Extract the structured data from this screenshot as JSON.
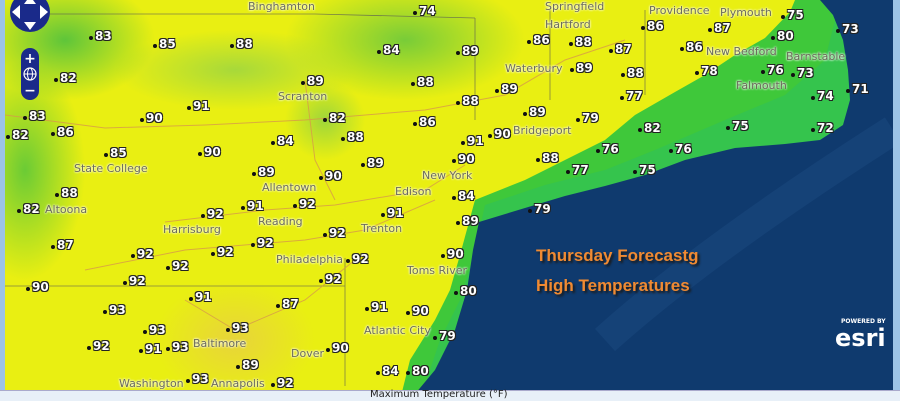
{
  "title": {
    "line1": "Thursday Forecastg",
    "line2": "High Temperatures"
  },
  "legend_label": "Maximum Temperature (°F)",
  "attribution": {
    "powered_by": "POWERED BY",
    "logo": "esri"
  },
  "colors": {
    "ocean": "#0f3a6e",
    "land_hot": "#e9ef12",
    "land_cool": "#3fc83a",
    "title": "#f08a32"
  },
  "nav_controls": {
    "pan_icons": [
      "arrow-up-icon",
      "arrow-left-icon",
      "arrow-right-icon",
      "arrow-down-icon"
    ],
    "zoom_in": "+",
    "zoom_out": "−",
    "globe_icon": "globe-icon"
  },
  "cities": [
    "Binghamton",
    "Springfield",
    "Scranton",
    "State College",
    "Altoona",
    "Allentown",
    "Edison",
    "New York",
    "Bridgeport",
    "Waterbury",
    "Hartford",
    "Providence",
    "New Bedford",
    "Falmouth",
    "Barnstable",
    "Plymouth",
    "Harrisburg",
    "Reading",
    "Trenton",
    "Philadelphia",
    "Toms River",
    "Atlantic City",
    "Baltimore",
    "Dover",
    "Annapolis",
    "Washington"
  ],
  "temperatures": [
    "74",
    "83",
    "85",
    "88",
    "82",
    "84",
    "88",
    "89",
    "83",
    "86",
    "82",
    "91",
    "90",
    "82",
    "86",
    "88",
    "84",
    "85",
    "90",
    "89",
    "89",
    "90",
    "88",
    "89",
    "86",
    "88",
    "86",
    "87",
    "87",
    "86",
    "89",
    "88",
    "89",
    "88",
    "77",
    "79",
    "89",
    "90",
    "91",
    "90",
    "82",
    "76",
    "76",
    "88",
    "77",
    "75",
    "75",
    "84",
    "78",
    "76",
    "80",
    "75",
    "73",
    "74",
    "73",
    "71",
    "72",
    "82",
    "91",
    "92",
    "92",
    "91",
    "87",
    "92",
    "92",
    "92",
    "92",
    "92",
    "92",
    "89",
    "90",
    "92",
    "90",
    "92",
    "91",
    "87",
    "93",
    "91",
    "90",
    "93",
    "93",
    "79",
    "91",
    "93",
    "92",
    "90",
    "89",
    "93",
    "84",
    "80",
    "92",
    "79",
    "80"
  ]
}
